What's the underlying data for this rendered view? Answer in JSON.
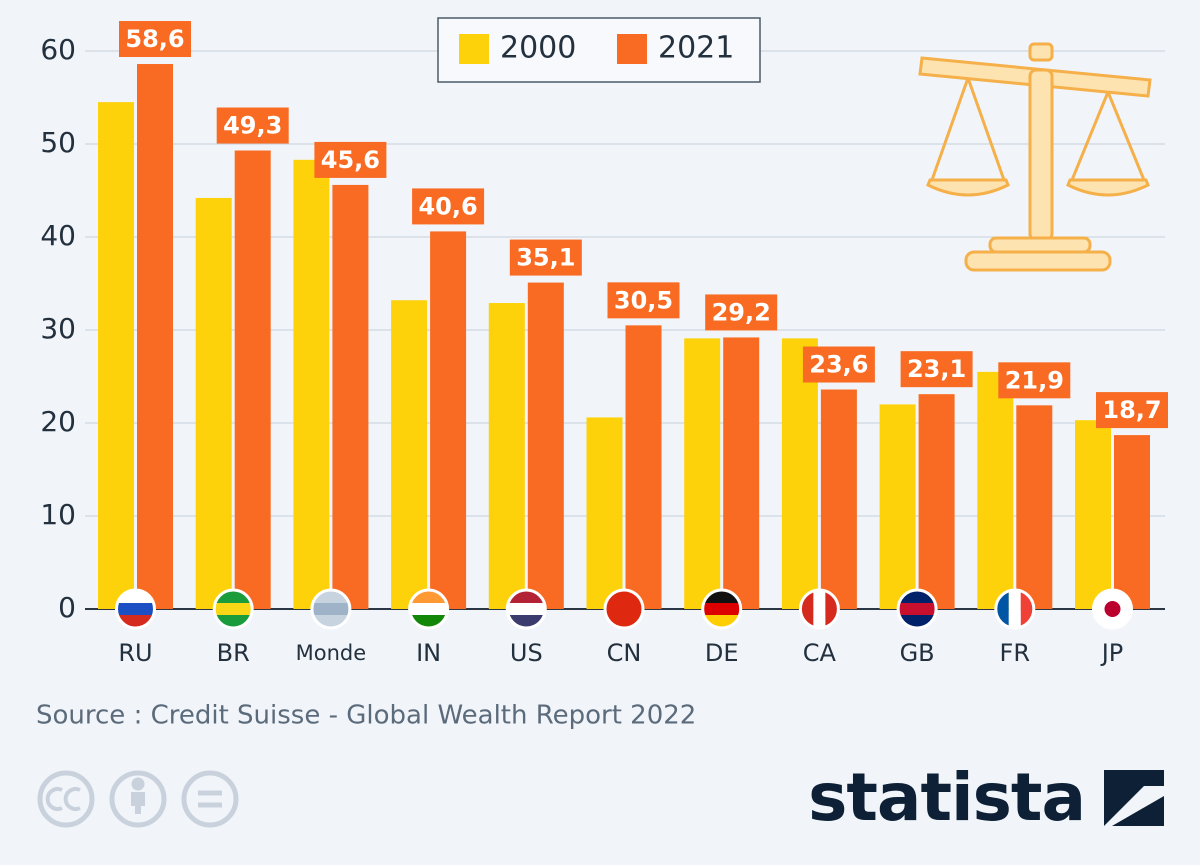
{
  "chart_data": {
    "type": "bar",
    "categories": [
      "RU",
      "BR",
      "Monde",
      "IN",
      "US",
      "CN",
      "DE",
      "CA",
      "GB",
      "FR",
      "JP"
    ],
    "series": [
      {
        "name": "2000",
        "color": "#fdd20a",
        "values": [
          54.5,
          44.2,
          48.3,
          33.2,
          32.9,
          20.6,
          29.1,
          29.1,
          22.0,
          25.5,
          20.3
        ]
      },
      {
        "name": "2021",
        "color": "#f96b22",
        "values": [
          58.6,
          49.3,
          45.6,
          40.6,
          35.1,
          30.5,
          29.2,
          23.6,
          23.1,
          21.9,
          18.7
        ],
        "value_labels": [
          "58,6",
          "49,3",
          "45,6",
          "40,6",
          "35,1",
          "30,5",
          "29,2",
          "23,6",
          "23,1",
          "21,9",
          "18,7"
        ]
      }
    ],
    "ylim": [
      0,
      62
    ],
    "yticks": [
      0,
      10,
      20,
      30,
      40,
      50,
      60
    ],
    "grid": true,
    "legend": "top"
  },
  "source": "Source : Credit Suisse - Global Wealth Report 2022",
  "brand": "statista"
}
